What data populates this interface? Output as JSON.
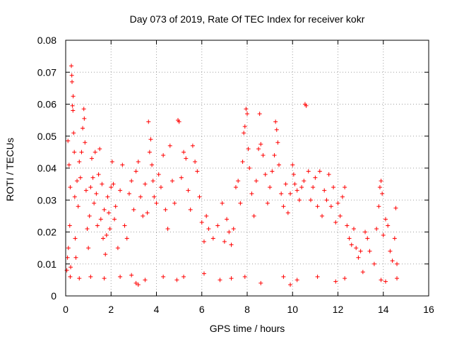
{
  "chart_data": {
    "type": "scatter",
    "title": "Day 073 of 2019, Rate Of TEC Index for receiver kokr",
    "xlabel": "GPS time / hours",
    "ylabel": "ROTI / TECUs",
    "xlim": [
      0,
      16
    ],
    "ylim": [
      0,
      0.08
    ],
    "x_ticks": [
      0,
      2,
      4,
      6,
      8,
      10,
      12,
      14,
      16
    ],
    "x_tick_labels": [
      "0",
      "2",
      "4",
      "6",
      "8",
      "10",
      "12",
      "14",
      "16"
    ],
    "y_ticks": [
      0,
      0.01,
      0.02,
      0.03,
      0.04,
      0.05,
      0.06,
      0.07,
      0.08
    ],
    "y_tick_labels": [
      "0",
      "0.01",
      "0.02",
      "0.03",
      "0.04",
      "0.05",
      "0.06",
      "0.07",
      "0.08"
    ],
    "grid": true,
    "marker": "+",
    "color": "#ff0000",
    "series": [
      {
        "name": "ROTI",
        "points": [
          [
            0.05,
            0.008
          ],
          [
            0.08,
            0.012
          ],
          [
            0.1,
            0.0485
          ],
          [
            0.12,
            0.015
          ],
          [
            0.15,
            0.041
          ],
          [
            0.18,
            0.022
          ],
          [
            0.2,
            0.034
          ],
          [
            0.22,
            0.009
          ],
          [
            0.25,
            0.072
          ],
          [
            0.27,
            0.069
          ],
          [
            0.28,
            0.067
          ],
          [
            0.3,
            0.0595
          ],
          [
            0.32,
            0.058
          ],
          [
            0.33,
            0.0625
          ],
          [
            0.35,
            0.051
          ],
          [
            0.38,
            0.045
          ],
          [
            0.4,
            0.031
          ],
          [
            0.42,
            0.018
          ],
          [
            0.45,
            0.012
          ],
          [
            0.5,
            0.036
          ],
          [
            0.55,
            0.028
          ],
          [
            0.6,
            0.042
          ],
          [
            0.65,
            0.037
          ],
          [
            0.7,
            0.045
          ],
          [
            0.75,
            0.0525
          ],
          [
            0.8,
            0.0585
          ],
          [
            0.82,
            0.0555
          ],
          [
            0.85,
            0.048
          ],
          [
            0.9,
            0.033
          ],
          [
            0.95,
            0.021
          ],
          [
            1.0,
            0.015
          ],
          [
            1.05,
            0.025
          ],
          [
            1.1,
            0.034
          ],
          [
            1.15,
            0.043
          ],
          [
            1.2,
            0.037
          ],
          [
            1.25,
            0.029
          ],
          [
            1.3,
            0.045
          ],
          [
            1.35,
            0.032
          ],
          [
            1.4,
            0.022
          ],
          [
            1.45,
            0.038
          ],
          [
            1.5,
            0.046
          ],
          [
            1.55,
            0.024
          ],
          [
            1.6,
            0.035
          ],
          [
            1.65,
            0.018
          ],
          [
            1.7,
            0.027
          ],
          [
            1.75,
            0.013
          ],
          [
            1.8,
            0.019
          ],
          [
            1.85,
            0.031
          ],
          [
            1.9,
            0.026
          ],
          [
            1.95,
            0.021
          ],
          [
            2.0,
            0.034
          ],
          [
            2.05,
            0.042
          ],
          [
            2.1,
            0.035
          ],
          [
            2.15,
            0.024
          ],
          [
            2.2,
            0.028
          ],
          [
            2.3,
            0.015
          ],
          [
            2.4,
            0.033
          ],
          [
            2.5,
            0.041
          ],
          [
            2.6,
            0.022
          ],
          [
            2.7,
            0.018
          ],
          [
            2.8,
            0.032
          ],
          [
            2.9,
            0.036
          ],
          [
            3.0,
            0.027
          ],
          [
            3.1,
            0.039
          ],
          [
            3.2,
            0.042
          ],
          [
            3.3,
            0.031
          ],
          [
            3.4,
            0.025
          ],
          [
            3.5,
            0.035
          ],
          [
            3.6,
            0.026
          ],
          [
            3.65,
            0.0545
          ],
          [
            3.7,
            0.045
          ],
          [
            3.75,
            0.049
          ],
          [
            3.8,
            0.041
          ],
          [
            3.85,
            0.036
          ],
          [
            3.9,
            0.031
          ],
          [
            4.0,
            0.029
          ],
          [
            4.1,
            0.038
          ],
          [
            4.2,
            0.034
          ],
          [
            4.3,
            0.044
          ],
          [
            4.4,
            0.027
          ],
          [
            4.5,
            0.021
          ],
          [
            4.6,
            0.047
          ],
          [
            4.7,
            0.036
          ],
          [
            4.8,
            0.029
          ],
          [
            4.95,
            0.055
          ],
          [
            5.0,
            0.0545
          ],
          [
            5.1,
            0.037
          ],
          [
            5.2,
            0.045
          ],
          [
            5.3,
            0.043
          ],
          [
            5.4,
            0.033
          ],
          [
            5.5,
            0.027
          ],
          [
            5.6,
            0.047
          ],
          [
            5.7,
            0.042
          ],
          [
            5.8,
            0.039
          ],
          [
            5.9,
            0.031
          ],
          [
            6.0,
            0.023
          ],
          [
            6.1,
            0.017
          ],
          [
            6.2,
            0.025
          ],
          [
            6.3,
            0.021
          ],
          [
            6.5,
            0.018
          ],
          [
            6.7,
            0.022
          ],
          [
            6.9,
            0.029
          ],
          [
            7.0,
            0.017
          ],
          [
            7.1,
            0.024
          ],
          [
            7.2,
            0.02
          ],
          [
            7.3,
            0.016
          ],
          [
            7.4,
            0.021
          ],
          [
            7.5,
            0.034
          ],
          [
            7.6,
            0.036
          ],
          [
            7.7,
            0.029
          ],
          [
            7.8,
            0.042
          ],
          [
            7.85,
            0.051
          ],
          [
            7.9,
            0.053
          ],
          [
            7.95,
            0.0585
          ],
          [
            8.0,
            0.057
          ],
          [
            8.05,
            0.046
          ],
          [
            8.1,
            0.04
          ],
          [
            8.2,
            0.032
          ],
          [
            8.3,
            0.025
          ],
          [
            8.4,
            0.036
          ],
          [
            8.5,
            0.046
          ],
          [
            8.55,
            0.057
          ],
          [
            8.6,
            0.0475
          ],
          [
            8.7,
            0.044
          ],
          [
            8.8,
            0.038
          ],
          [
            8.9,
            0.029
          ],
          [
            9.0,
            0.034
          ],
          [
            9.1,
            0.039
          ],
          [
            9.2,
            0.044
          ],
          [
            9.25,
            0.0545
          ],
          [
            9.3,
            0.052
          ],
          [
            9.35,
            0.048
          ],
          [
            9.4,
            0.041
          ],
          [
            9.5,
            0.032
          ],
          [
            9.6,
            0.028
          ],
          [
            9.7,
            0.035
          ],
          [
            9.8,
            0.026
          ],
          [
            9.9,
            0.032
          ],
          [
            10.0,
            0.041
          ],
          [
            10.05,
            0.038
          ],
          [
            10.1,
            0.035
          ],
          [
            10.2,
            0.033
          ],
          [
            10.3,
            0.03
          ],
          [
            10.4,
            0.034
          ],
          [
            10.5,
            0.036
          ],
          [
            10.55,
            0.06
          ],
          [
            10.6,
            0.0595
          ],
          [
            10.7,
            0.039
          ],
          [
            10.8,
            0.03
          ],
          [
            10.9,
            0.034
          ],
          [
            11.0,
            0.037
          ],
          [
            11.1,
            0.028
          ],
          [
            11.2,
            0.039
          ],
          [
            11.3,
            0.025
          ],
          [
            11.4,
            0.033
          ],
          [
            11.5,
            0.03
          ],
          [
            11.6,
            0.038
          ],
          [
            11.7,
            0.028
          ],
          [
            11.8,
            0.034
          ],
          [
            11.9,
            0.023
          ],
          [
            12.0,
            0.029
          ],
          [
            12.1,
            0.025
          ],
          [
            12.2,
            0.031
          ],
          [
            12.3,
            0.034
          ],
          [
            12.4,
            0.022
          ],
          [
            12.5,
            0.018
          ],
          [
            12.6,
            0.016
          ],
          [
            12.7,
            0.021
          ],
          [
            12.8,
            0.015
          ],
          [
            12.9,
            0.012
          ],
          [
            13.0,
            0.014
          ],
          [
            13.2,
            0.02
          ],
          [
            13.3,
            0.018
          ],
          [
            13.4,
            0.014
          ],
          [
            13.6,
            0.01
          ],
          [
            13.7,
            0.021
          ],
          [
            13.8,
            0.028
          ],
          [
            13.85,
            0.034
          ],
          [
            13.9,
            0.036
          ],
          [
            13.95,
            0.032
          ],
          [
            14.0,
            0.019
          ],
          [
            14.1,
            0.024
          ],
          [
            14.2,
            0.022
          ],
          [
            14.3,
            0.014
          ],
          [
            14.4,
            0.011
          ],
          [
            14.5,
            0.018
          ],
          [
            14.55,
            0.0275
          ],
          [
            14.6,
            0.01
          ],
          [
            0.2,
            0.006
          ],
          [
            0.6,
            0.0055
          ],
          [
            1.1,
            0.006
          ],
          [
            1.7,
            0.0055
          ],
          [
            2.4,
            0.006
          ],
          [
            2.9,
            0.0065
          ],
          [
            3.1,
            0.004
          ],
          [
            3.2,
            0.0035
          ],
          [
            3.5,
            0.005
          ],
          [
            4.3,
            0.006
          ],
          [
            4.9,
            0.005
          ],
          [
            5.2,
            0.006
          ],
          [
            6.1,
            0.007
          ],
          [
            6.8,
            0.005
          ],
          [
            7.3,
            0.0055
          ],
          [
            7.9,
            0.006
          ],
          [
            8.6,
            0.004
          ],
          [
            9.6,
            0.006
          ],
          [
            9.9,
            0.0035
          ],
          [
            10.2,
            0.005
          ],
          [
            11.1,
            0.006
          ],
          [
            11.9,
            0.0045
          ],
          [
            12.3,
            0.0055
          ],
          [
            13.1,
            0.0075
          ],
          [
            13.9,
            0.005
          ],
          [
            14.1,
            0.0045
          ],
          [
            14.6,
            0.0055
          ]
        ]
      }
    ]
  }
}
